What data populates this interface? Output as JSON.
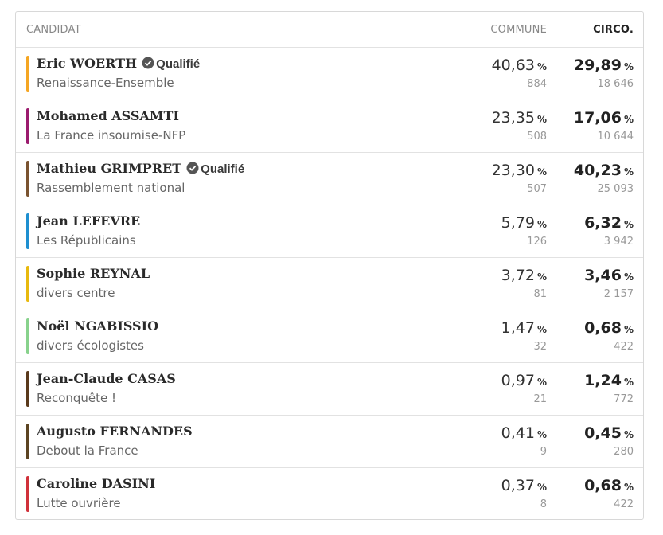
{
  "table": {
    "header": {
      "candidate": "CANDIDAT",
      "commune": "COMMUNE",
      "circo": "CIRCO."
    },
    "percent_unit": "%",
    "rows": [
      {
        "name": "Eric WOERTH",
        "badge": "Qualifié",
        "party": "Renaissance-Ensemble",
        "color": "#f5a623",
        "commune_percent": "40,63",
        "commune_votes": "884",
        "circo_percent": "29,89",
        "circo_votes": "18 646"
      },
      {
        "name": "Mohamed ASSAMTI",
        "party": "La France insoumise-NFP",
        "color": "#9b1b6e",
        "commune_percent": "23,35",
        "commune_votes": "508",
        "circo_percent": "17,06",
        "circo_votes": "10 644"
      },
      {
        "name": "Mathieu GRIMPRET",
        "badge": "Qualifié",
        "party": "Rassemblement national",
        "color": "#7a5330",
        "commune_percent": "23,30",
        "commune_votes": "507",
        "circo_percent": "40,23",
        "circo_votes": "25 093"
      },
      {
        "name": "Jean LEFEVRE",
        "party": "Les Républicains",
        "color": "#1e8fd0",
        "commune_percent": "5,79",
        "commune_votes": "126",
        "circo_percent": "6,32",
        "circo_votes": "3 942"
      },
      {
        "name": "Sophie REYNAL",
        "party": "divers centre",
        "color": "#e8b90e",
        "commune_percent": "3,72",
        "commune_votes": "81",
        "circo_percent": "3,46",
        "circo_votes": "2 157"
      },
      {
        "name": "Noël NGABISSIO",
        "party": "divers écologistes",
        "color": "#88d28c",
        "commune_percent": "1,47",
        "commune_votes": "32",
        "circo_percent": "0,68",
        "circo_votes": "422"
      },
      {
        "name": "Jean-Claude CASAS",
        "party": "Reconquête !",
        "color": "#5a3a1c",
        "commune_percent": "0,97",
        "commune_votes": "21",
        "circo_percent": "1,24",
        "circo_votes": "772"
      },
      {
        "name": "Augusto FERNANDES",
        "party": "Debout la France",
        "color": "#5c4422",
        "commune_percent": "0,41",
        "commune_votes": "9",
        "circo_percent": "0,45",
        "circo_votes": "280"
      },
      {
        "name": "Caroline DASINI",
        "party": "Lutte ouvrière",
        "color": "#d0313a",
        "commune_percent": "0,37",
        "commune_votes": "8",
        "circo_percent": "0,68",
        "circo_votes": "422"
      }
    ]
  }
}
